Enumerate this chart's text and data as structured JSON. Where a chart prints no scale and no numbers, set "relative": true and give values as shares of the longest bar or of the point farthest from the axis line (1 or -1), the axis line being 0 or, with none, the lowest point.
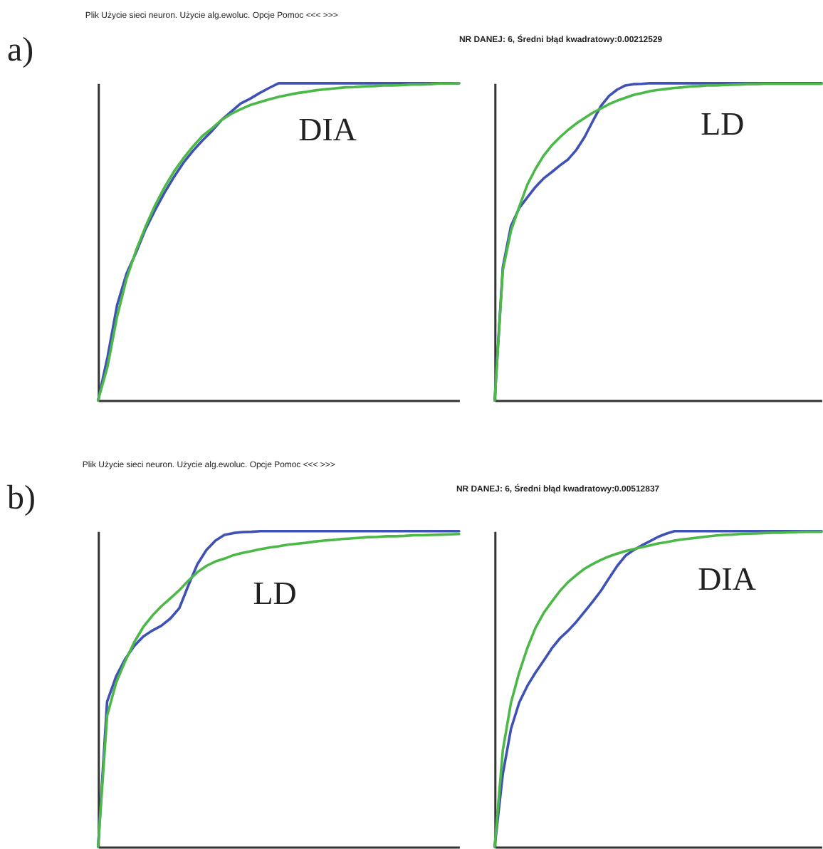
{
  "chart_data": [
    {
      "type": "line",
      "title": "DIA",
      "annotations": [
        "a)",
        "Plik   Użycie sieci neuron.   Użycie alg.ewoluc.   Opcje   Pomoc   <<<   >>>"
      ],
      "relative": true,
      "categories": [
        null,
        null,
        null,
        null,
        null,
        null,
        null,
        null,
        null,
        null,
        null,
        null,
        null,
        null,
        null,
        null,
        null,
        null,
        null,
        null,
        null,
        null,
        null,
        null,
        null,
        null,
        null,
        null,
        null,
        null,
        null,
        null,
        null,
        null,
        null,
        null,
        null,
        null,
        null
      ],
      "series": [
        {
          "color": "#3f51b5",
          "values": [
            0,
            0.137,
            0.3,
            0.4,
            0.466,
            0.54,
            0.6,
            0.655,
            0.705,
            0.75,
            0.787,
            0.82,
            0.85,
            0.884,
            0.91,
            0.936,
            0.951,
            0.969,
            0.985,
            1,
            1,
            1,
            1,
            1,
            1,
            1,
            1,
            1,
            1,
            1,
            1,
            1,
            1,
            1,
            1,
            1,
            1,
            1,
            1
          ]
        },
        {
          "color": "#4cb848",
          "values": [
            0,
            0.107,
            0.264,
            0.384,
            0.473,
            0.548,
            0.615,
            0.672,
            0.722,
            0.764,
            0.801,
            0.834,
            0.858,
            0.884,
            0.903,
            0.918,
            0.931,
            0.94,
            0.949,
            0.957,
            0.963,
            0.969,
            0.973,
            0.978,
            0.981,
            0.984,
            0.987,
            0.988,
            0.99,
            0.991,
            0.993,
            0.993,
            0.994,
            0.996,
            0.996,
            0.997,
            0.999,
            0.999,
            1
          ]
        }
      ]
    },
    {
      "type": "line",
      "title": "LD",
      "annotations": [
        "NR DANEJ: 6, Średni błąd kwadratowy:0.00212529"
      ],
      "relative": true,
      "categories": [
        null,
        null,
        null,
        null,
        null,
        null,
        null,
        null,
        null,
        null,
        null,
        null,
        null,
        null,
        null,
        null,
        null,
        null,
        null,
        null,
        null,
        null,
        null,
        null,
        null,
        null,
        null,
        null,
        null,
        null,
        null,
        null,
        null,
        null,
        null,
        null,
        null,
        null,
        null,
        null,
        null
      ],
      "series": [
        {
          "color": "#3f51b5",
          "values": [
            0,
            0.42,
            0.55,
            0.606,
            0.64,
            0.673,
            0.7,
            0.72,
            0.741,
            0.76,
            0.79,
            0.83,
            0.88,
            0.928,
            0.96,
            0.98,
            0.993,
            0.997,
            0.998,
            1,
            1,
            1,
            1,
            1,
            1,
            1,
            1,
            1,
            1,
            1,
            1,
            1,
            1,
            1,
            1,
            1,
            1,
            1,
            1,
            1,
            1
          ]
        },
        {
          "color": "#4cb848",
          "values": [
            0,
            0.41,
            0.535,
            0.61,
            0.68,
            0.73,
            0.772,
            0.804,
            0.83,
            0.853,
            0.873,
            0.89,
            0.907,
            0.92,
            0.934,
            0.945,
            0.954,
            0.963,
            0.969,
            0.975,
            0.979,
            0.982,
            0.985,
            0.987,
            0.99,
            0.991,
            0.993,
            0.993,
            0.994,
            0.995,
            0.996,
            0.997,
            0.997,
            0.998,
            0.998,
            0.998,
            0.998,
            0.998,
            0.998,
            0.998,
            0.998
          ]
        }
      ]
    },
    {
      "type": "line",
      "title": "LD",
      "annotations": [
        "b)",
        "Plik   Użycie sieci neuron.   Użycie alg.ewoluc.   Opcje   Pomoc   <<<   >>>"
      ],
      "relative": true,
      "categories": [
        null,
        null,
        null,
        null,
        null,
        null,
        null,
        null,
        null,
        null,
        null,
        null,
        null,
        null,
        null,
        null,
        null,
        null,
        null,
        null,
        null,
        null,
        null,
        null,
        null,
        null,
        null,
        null,
        null,
        null,
        null,
        null,
        null,
        null,
        null,
        null,
        null,
        null,
        null,
        null,
        null
      ],
      "series": [
        {
          "color": "#3f51b5",
          "values": [
            0,
            0.46,
            0.54,
            0.595,
            0.636,
            0.666,
            0.685,
            0.7,
            0.723,
            0.756,
            0.828,
            0.895,
            0.94,
            0.97,
            0.988,
            0.994,
            0.997,
            0.998,
            1,
            1,
            1,
            1,
            1,
            1,
            1,
            1,
            1,
            1,
            1,
            1,
            1,
            1,
            1,
            1,
            1,
            1,
            1,
            1,
            1,
            1,
            1
          ]
        },
        {
          "color": "#4cb848",
          "values": [
            0,
            0.415,
            0.52,
            0.588,
            0.648,
            0.696,
            0.732,
            0.762,
            0.787,
            0.813,
            0.843,
            0.87,
            0.89,
            0.904,
            0.913,
            0.924,
            0.931,
            0.937,
            0.943,
            0.948,
            0.952,
            0.957,
            0.96,
            0.963,
            0.967,
            0.97,
            0.972,
            0.975,
            0.977,
            0.979,
            0.981,
            0.982,
            0.984,
            0.984,
            0.985,
            0.987,
            0.987,
            0.988,
            0.989,
            0.99,
            0.991
          ]
        }
      ]
    },
    {
      "type": "line",
      "title": "DIA",
      "annotations": [
        "NR DANEJ: 6, Średni błąd kwadratowy:0.00512837"
      ],
      "relative": true,
      "categories": [
        null,
        null,
        null,
        null,
        null,
        null,
        null,
        null,
        null,
        null,
        null,
        null,
        null,
        null,
        null,
        null,
        null,
        null,
        null,
        null,
        null,
        null,
        null,
        null,
        null,
        null,
        null,
        null,
        null,
        null,
        null,
        null,
        null,
        null,
        null,
        null,
        null,
        null,
        null,
        null,
        null
      ],
      "series": [
        {
          "color": "#3f51b5",
          "values": [
            0,
            0.231,
            0.374,
            0.457,
            0.51,
            0.552,
            0.59,
            0.629,
            0.661,
            0.685,
            0.713,
            0.745,
            0.777,
            0.811,
            0.851,
            0.89,
            0.922,
            0.94,
            0.955,
            0.968,
            0.982,
            0.992,
            1,
            1,
            1,
            1,
            1,
            1,
            1,
            1,
            1,
            1,
            1,
            1,
            1,
            1,
            1,
            1,
            1,
            1,
            1
          ]
        },
        {
          "color": "#4cb848",
          "values": [
            0,
            0.306,
            0.457,
            0.552,
            0.63,
            0.694,
            0.741,
            0.777,
            0.811,
            0.839,
            0.861,
            0.881,
            0.896,
            0.909,
            0.92,
            0.929,
            0.937,
            0.943,
            0.949,
            0.955,
            0.961,
            0.965,
            0.97,
            0.974,
            0.977,
            0.98,
            0.983,
            0.986,
            0.988,
            0.989,
            0.991,
            0.992,
            0.993,
            0.994,
            0.995,
            0.995,
            0.996,
            0.997,
            0.998,
            0.998,
            0.998
          ]
        }
      ]
    }
  ]
}
